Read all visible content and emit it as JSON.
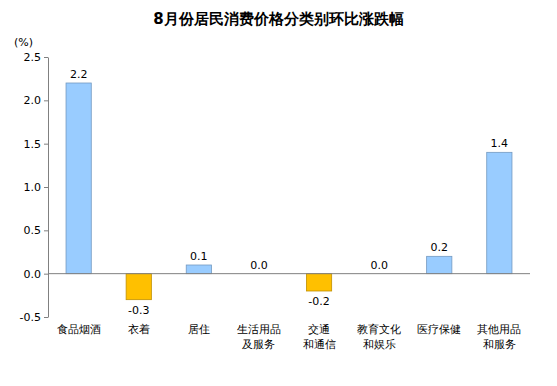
{
  "chart_data": {
    "type": "bar",
    "title": "8月份居民消费价格分类别环比涨跌幅",
    "y_label": "(%)",
    "categories": [
      "食品烟酒",
      "衣着",
      "居住",
      "生活用品\n及服务",
      "交通\n和通信",
      "教育文化\n和娱乐",
      "医疗保健",
      "其他用品\n和服务"
    ],
    "values": [
      2.2,
      -0.3,
      0.1,
      0.0,
      -0.2,
      0.0,
      0.2,
      1.4
    ],
    "value_labels": [
      "2.2",
      "-0.3",
      "0.1",
      "0.0",
      "-0.2",
      "0.0",
      "0.2",
      "1.4"
    ],
    "colors": [
      "#99ccff",
      "#ffc000",
      "#99ccff",
      "#99ccff",
      "#ffc000",
      "#99ccff",
      "#99ccff",
      "#99ccff"
    ],
    "ylim": [
      -0.5,
      2.5
    ],
    "yticks": [
      {
        "value": -0.5,
        "label": "-0.5"
      },
      {
        "value": 0,
        "label": "0.0"
      },
      {
        "value": 0.5,
        "label": "0.5"
      },
      {
        "value": 1,
        "label": "1.0"
      },
      {
        "value": 1.5,
        "label": "1.5"
      },
      {
        "value": 2,
        "label": "2.0"
      },
      {
        "value": 2.5,
        "label": "2.5"
      }
    ],
    "grid": false,
    "data_labels": true
  }
}
